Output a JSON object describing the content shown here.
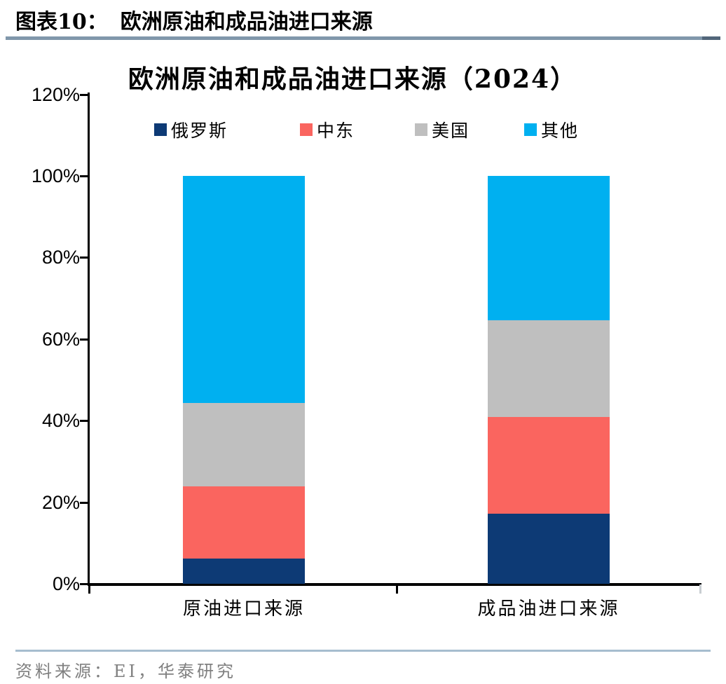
{
  "report_header": {
    "label": "图表10：",
    "title": "欧洲原油和成品油进口来源"
  },
  "chart_data": {
    "type": "bar",
    "subtype": "stacked-percent-column",
    "title": "欧洲原油和成品油进口来源（2024）",
    "categories": [
      "原油进口来源",
      "成品油进口来源"
    ],
    "series": [
      {
        "name": "俄罗斯",
        "color": "#0d3a75",
        "values": [
          6.2,
          17.2
        ]
      },
      {
        "name": "中东",
        "color": "#fa655f",
        "values": [
          17.7,
          23.7
        ]
      },
      {
        "name": "美国",
        "color": "#bfbfbf",
        "values": [
          20.4,
          23.7
        ]
      },
      {
        "name": "其他",
        "color": "#00b0f0",
        "values": [
          55.7,
          35.4
        ]
      }
    ],
    "xlabel": "",
    "ylabel": "",
    "ylim": [
      0,
      120
    ],
    "yticks": [
      "0%",
      "20%",
      "40%",
      "60%",
      "80%",
      "100%",
      "120%"
    ],
    "legend_position": "top",
    "grid": false
  },
  "footer": {
    "source": "资料来源：EI，华泰研究"
  }
}
